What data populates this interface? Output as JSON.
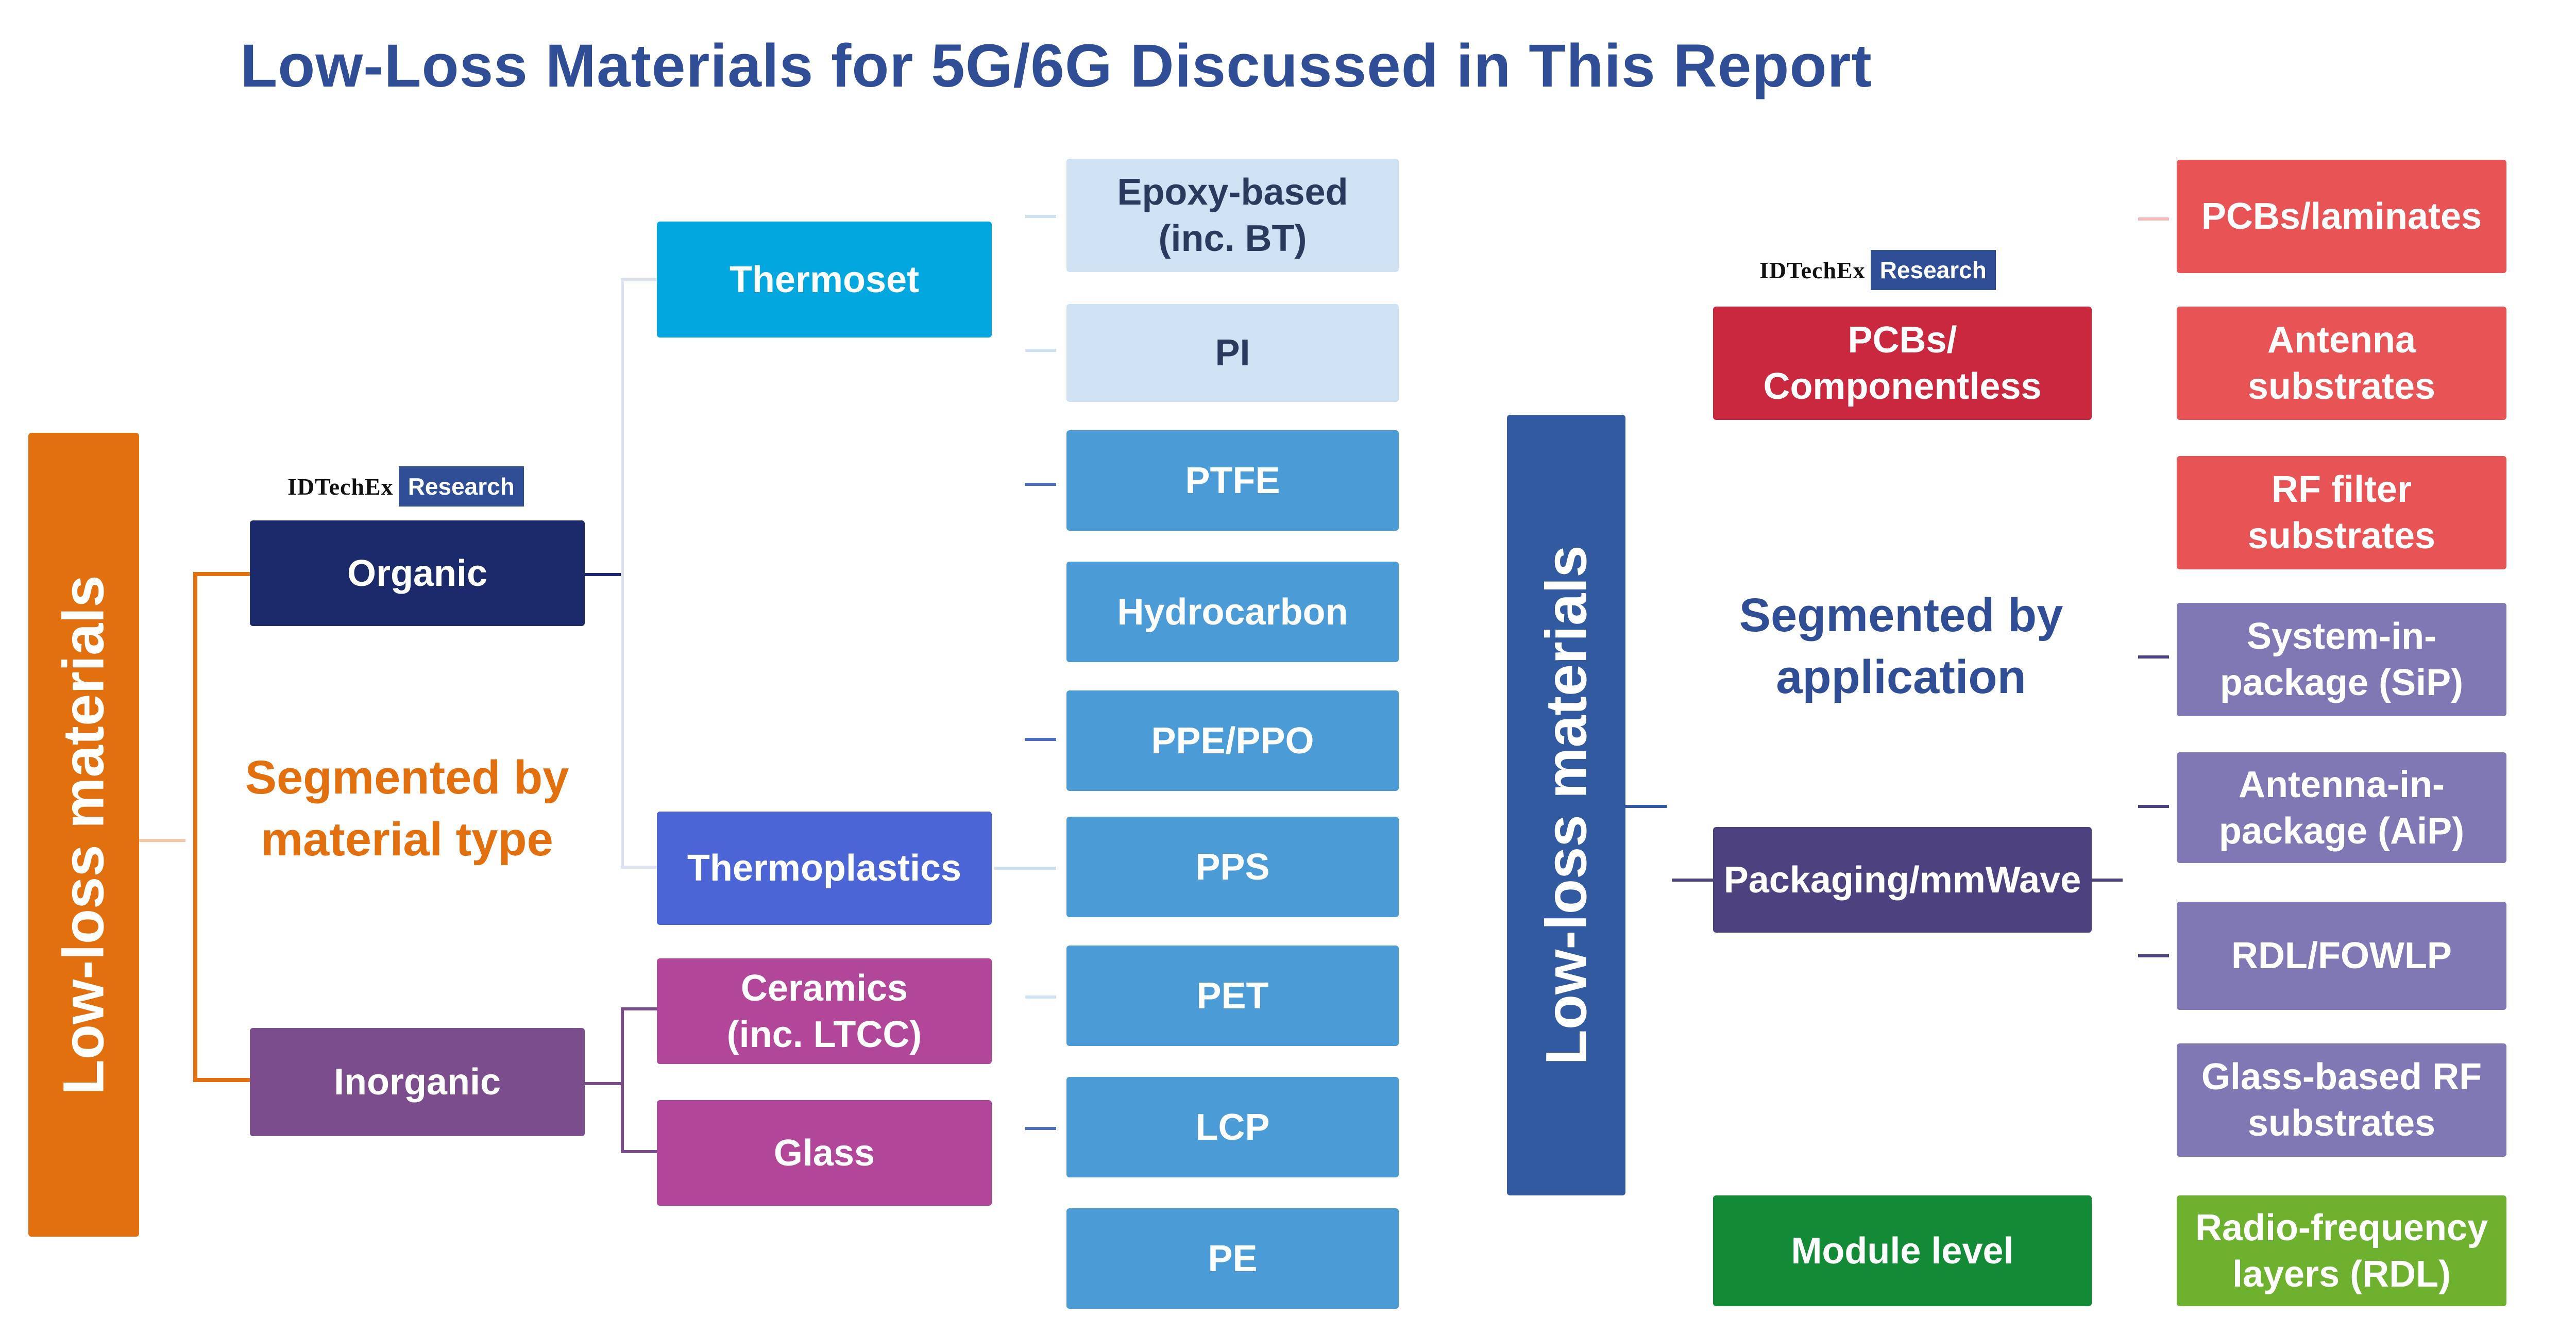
{
  "title": "Low-Loss Materials for 5G/6G Discussed in This Report",
  "badge": {
    "brand": "IDTechEx",
    "label": "Research"
  },
  "left": {
    "root": "Low-loss materials",
    "segment_label": "Segmented by\nmaterial type",
    "organic": "Organic",
    "inorganic": "Inorganic",
    "thermoset": "Thermoset",
    "thermoplastics": "Thermoplastics",
    "ceramics": "Ceramics\n(inc. LTCC)",
    "glass": "Glass",
    "materials": [
      "Epoxy-based\n(inc. BT)",
      "PI",
      "PTFE",
      "Hydrocarbon",
      "PPE/PPO",
      "PPS",
      "PET",
      "LCP",
      "PE"
    ]
  },
  "right": {
    "root": "Low-loss materials",
    "segment_label": "Segmented by\napplication",
    "pcb": "PCBs/\nComponentless",
    "packaging": "Packaging/mmWave",
    "module": "Module level",
    "pcb_apps": [
      "PCBs/laminates",
      "Antenna\nsubstrates",
      "RF filter\nsubstrates"
    ],
    "packaging_apps": [
      "System-in-\npackage (SiP)",
      "Antenna-in-\npackage (AiP)",
      "RDL/FOWLP",
      "Glass-based RF\nsubstrates"
    ],
    "module_apps": [
      "Radio-frequency\nlayers (RDL)"
    ]
  },
  "colors": {
    "orange": "#e2700f",
    "navy": "#1a2a6b",
    "purple": "#7b4d8c",
    "cyan": "#02a7e0",
    "indigo": "#4b64d6",
    "magenta": "#b2479a",
    "lightblue": "#cfe2f3",
    "midblue": "#4a9bd6",
    "rootblue": "#325aa0",
    "red": "#c9283e",
    "coral": "#e85356",
    "darkpurple": "#4d4180",
    "lavender": "#8078b5",
    "green": "#138a36",
    "lime": "#6db12e"
  }
}
